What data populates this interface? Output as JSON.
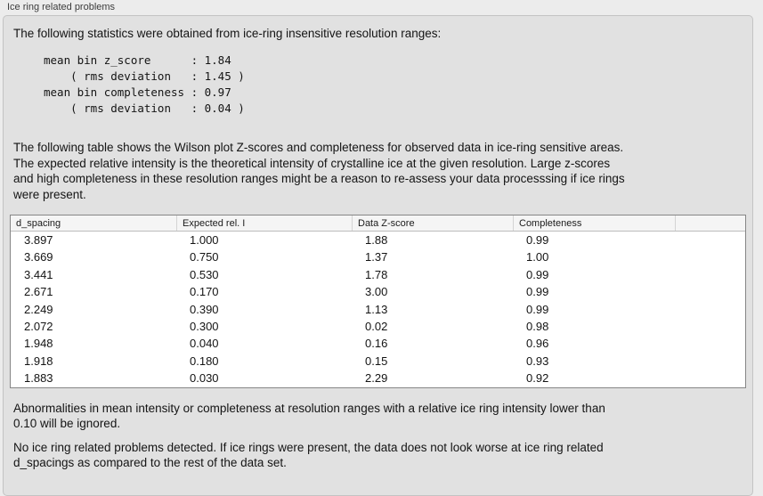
{
  "panel": {
    "title": "Ice ring related problems"
  },
  "intro": "The following statistics were obtained from ice-ring insensitive resolution ranges:",
  "stats_block": {
    "lines": [
      "mean bin z_score      : 1.84",
      "    ( rms deviation   : 1.45 )",
      "mean bin completeness : 0.97",
      "    ( rms deviation   : 0.04 )"
    ]
  },
  "description": "The following table shows the Wilson plot Z-scores and completeness for observed data in ice-ring sensitive areas.\nThe expected relative intensity is the theoretical intensity of crystalline ice at the given resolution. Large z-scores\nand high completeness in these resolution ranges might be a reason to re-assess your data processsing if ice rings\nwere present.",
  "table": {
    "columns": [
      "d_spacing",
      "Expected rel. I",
      "Data Z-score",
      "Completeness",
      ""
    ],
    "rows": [
      [
        "3.897",
        "1.000",
        "1.88",
        "0.99"
      ],
      [
        "3.669",
        "0.750",
        "1.37",
        "1.00"
      ],
      [
        "3.441",
        "0.530",
        "1.78",
        "0.99"
      ],
      [
        "2.671",
        "0.170",
        "3.00",
        "0.99"
      ],
      [
        "2.249",
        "0.390",
        "1.13",
        "0.99"
      ],
      [
        "2.072",
        "0.300",
        "0.02",
        "0.98"
      ],
      [
        "1.948",
        "0.040",
        "0.16",
        "0.96"
      ],
      [
        "1.918",
        "0.180",
        "0.15",
        "0.93"
      ],
      [
        "1.883",
        "0.030",
        "2.29",
        "0.92"
      ]
    ]
  },
  "note": "Abnormalities in mean intensity or completeness at resolution ranges with a relative ice ring intensity lower than\n0.10 will be ignored.",
  "conclusion": "No ice ring related problems detected. If ice rings were present, the data does not look worse at ice ring related\nd_spacings as compared to the rest of the data set.",
  "colors": {
    "window_background": "#ececec",
    "groupbox_background": "#e1e1e1",
    "table_header_background": "#f5f5f5",
    "table_body_background": "#ffffff",
    "text": "#141414"
  }
}
